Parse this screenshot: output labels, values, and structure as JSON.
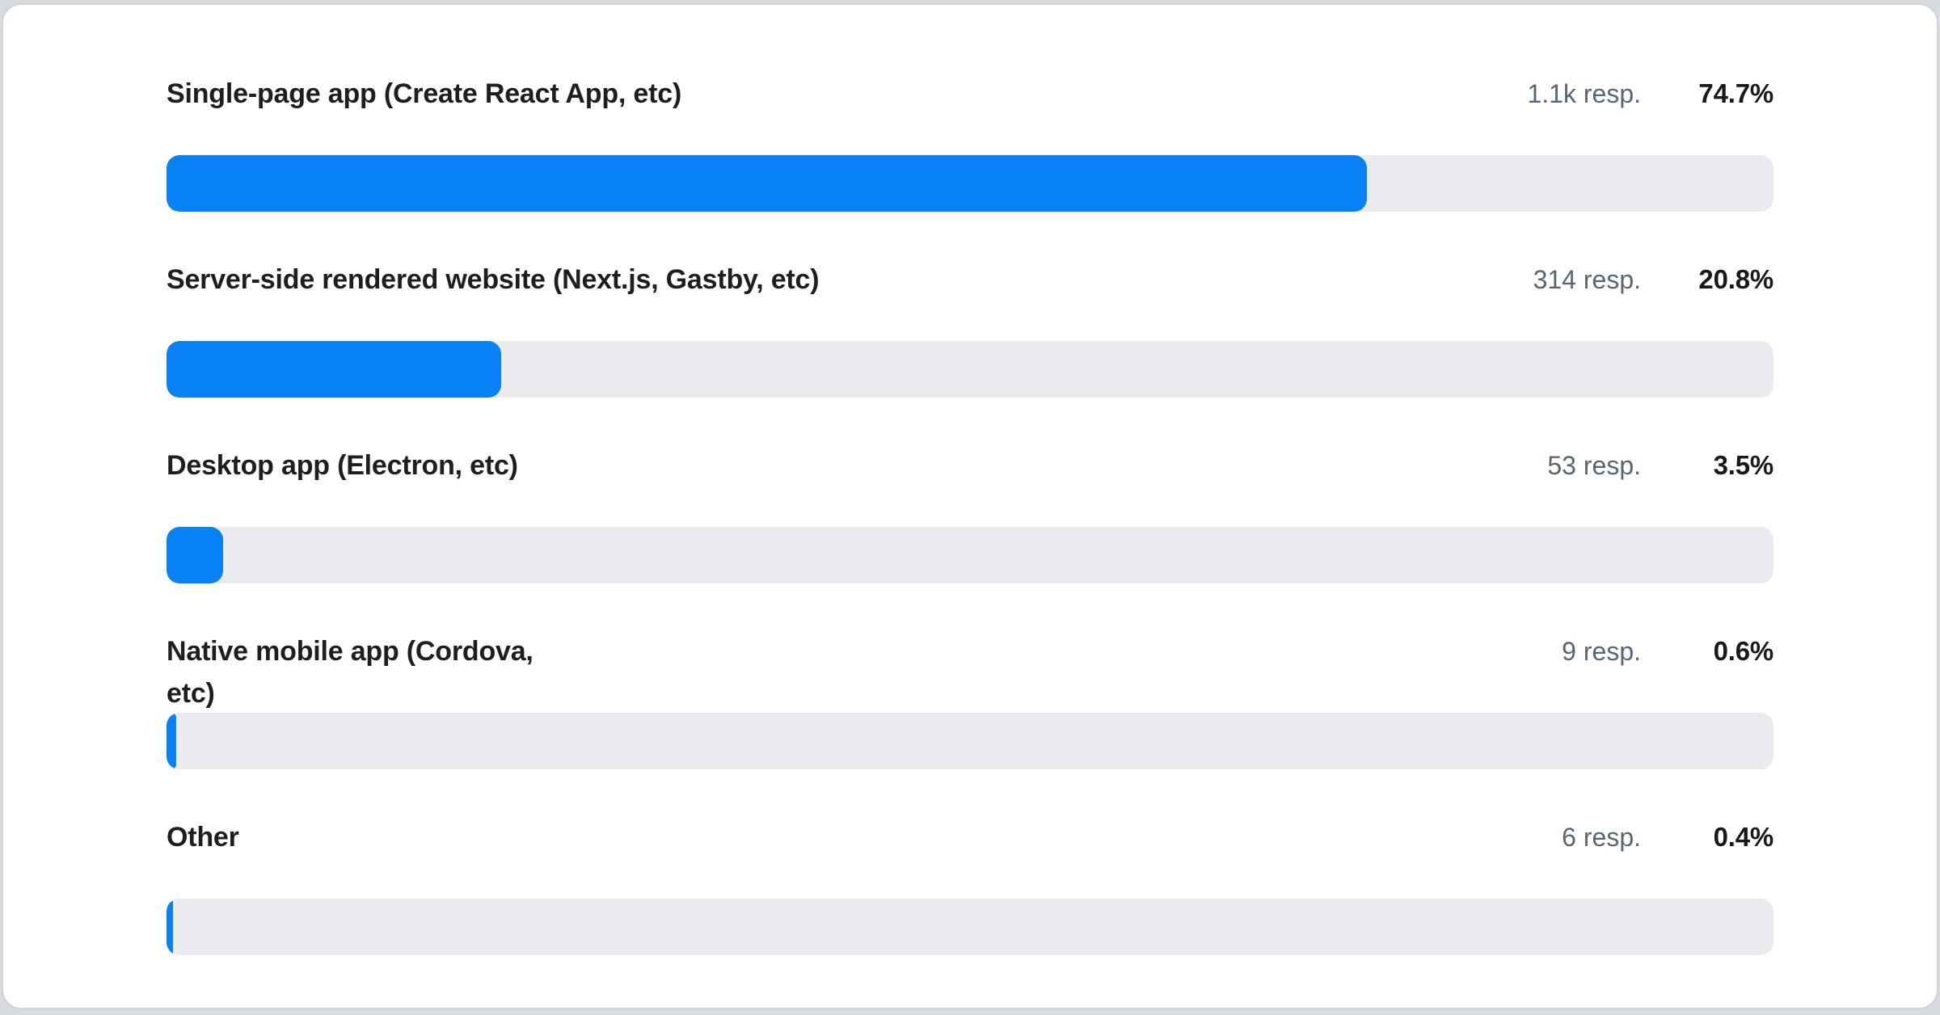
{
  "card": {
    "page_background": "#d8dbdf",
    "card_background": "#ffffff",
    "border_color": "#cfd4d9",
    "accent_color": "#0881f7",
    "track_color": "#e9ebee"
  },
  "chart_data": {
    "type": "bar",
    "orientation": "horizontal",
    "title": "",
    "value_unit": "percent",
    "xlim": [
      0,
      100
    ],
    "grid": false,
    "legend": "none",
    "categories": [
      "Single-page app (Create React App, etc)",
      "Server-side rendered website (Next.js, Gastby, etc)",
      "Desktop app (Electron, etc)",
      "Native mobile app (Cordova, etc)",
      "Other"
    ],
    "values": [
      74.7,
      20.8,
      3.5,
      0.6,
      0.4
    ],
    "response_counts": [
      "1.1k resp.",
      "314 resp.",
      "53 resp.",
      "9 resp.",
      "6 resp."
    ],
    "bar_color": "#0881f7",
    "track_color": "#e9ebee"
  },
  "rows": [
    {
      "label": "Single-page app (Create React App, etc)",
      "responses": "1.1k resp.",
      "percent": "74.7%",
      "value": 74.7
    },
    {
      "label": "Server-side rendered website (Next.js, Gastby, etc)",
      "responses": "314 resp.",
      "percent": "20.8%",
      "value": 20.8
    },
    {
      "label": "Desktop app (Electron, etc)",
      "responses": "53 resp.",
      "percent": "3.5%",
      "value": 3.5
    },
    {
      "label": "Native mobile app (Cordova,\netc)",
      "responses": "9 resp.",
      "percent": "0.6%",
      "value": 0.6
    },
    {
      "label": "Other",
      "responses": "6 resp.",
      "percent": "0.4%",
      "value": 0.4
    }
  ]
}
